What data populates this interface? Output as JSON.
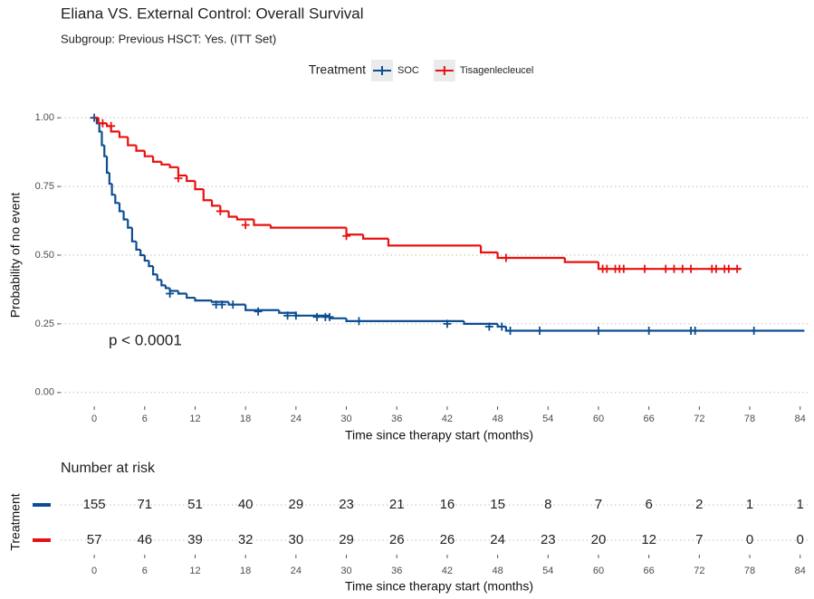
{
  "chart_data": [
    {
      "type": "km",
      "title": "Eliana VS. External Control: Overall Survival",
      "subtitle": "Subgroup: Previous HSCT: Yes. (ITT Set)",
      "legend_title": "Treatment",
      "legend_position": "top",
      "xlabel": "Time since therapy start (months)",
      "ylabel": "Probability of no event",
      "annotation": "p < 0.0001",
      "xlim": [
        -4,
        85
      ],
      "ylim": [
        -0.05,
        1.05
      ],
      "xticks": [
        0,
        6,
        12,
        18,
        24,
        30,
        36,
        42,
        48,
        54,
        60,
        66,
        72,
        78,
        84
      ],
      "yticks": [
        {
          "value": 0,
          "label": "0.00"
        },
        {
          "value": 0.25,
          "label": "0.25"
        },
        {
          "value": 0.5,
          "label": "0.50"
        },
        {
          "value": 0.75,
          "label": "0.75"
        },
        {
          "value": 1,
          "label": "1.00"
        }
      ],
      "grid": true,
      "series": [
        {
          "name": "SOC",
          "color": "#0c4e91",
          "x": [
            0,
            0.3,
            0.6,
            0.9,
            1.2,
            1.5,
            1.8,
            2.1,
            2.5,
            3,
            3.5,
            4,
            4.5,
            5,
            5.5,
            6,
            6.5,
            7,
            7.5,
            8,
            8.5,
            9,
            10,
            11,
            12,
            14,
            16,
            18,
            22,
            24,
            28,
            30,
            44,
            48,
            49,
            84.5
          ],
          "values": [
            1.0,
            0.98,
            0.95,
            0.9,
            0.86,
            0.8,
            0.76,
            0.72,
            0.69,
            0.66,
            0.63,
            0.6,
            0.55,
            0.52,
            0.5,
            0.48,
            0.46,
            0.43,
            0.41,
            0.39,
            0.38,
            0.37,
            0.36,
            0.345,
            0.335,
            0.33,
            0.32,
            0.3,
            0.29,
            0.28,
            0.27,
            0.26,
            0.25,
            0.24,
            0.225,
            0.225
          ],
          "censor_x": [
            0,
            9,
            14.5,
            15.2,
            16.5,
            19.5,
            23,
            24,
            26.5,
            27.5,
            28,
            31.5,
            42,
            47,
            48.5,
            49.5,
            53,
            60,
            66,
            71,
            71.5,
            78.5
          ],
          "censor_values": [
            1.0,
            0.36,
            0.32,
            0.32,
            0.32,
            0.295,
            0.28,
            0.28,
            0.275,
            0.275,
            0.275,
            0.26,
            0.25,
            0.24,
            0.24,
            0.225,
            0.225,
            0.225,
            0.225,
            0.225,
            0.225,
            0.225
          ]
        },
        {
          "name": "Tisagenlecleucel",
          "color": "#e8100f",
          "x": [
            0,
            0.5,
            1.5,
            2,
            3,
            4,
            5,
            6,
            7,
            8,
            9,
            10,
            11,
            12,
            13,
            14,
            15,
            16,
            17,
            19,
            21,
            30,
            32,
            35,
            46,
            48,
            56,
            60,
            77
          ],
          "values": [
            1.0,
            0.98,
            0.97,
            0.95,
            0.93,
            0.9,
            0.88,
            0.86,
            0.84,
            0.83,
            0.82,
            0.79,
            0.77,
            0.74,
            0.7,
            0.68,
            0.66,
            0.64,
            0.63,
            0.61,
            0.6,
            0.575,
            0.56,
            0.535,
            0.51,
            0.49,
            0.475,
            0.45,
            0.45
          ],
          "censor_x": [
            1,
            2,
            10,
            15,
            18,
            30,
            49,
            60.5,
            61,
            62,
            62.5,
            63,
            65.5,
            68,
            69,
            70,
            71,
            73.5,
            74,
            75,
            75.5,
            76.5
          ],
          "censor_values": [
            0.98,
            0.97,
            0.78,
            0.66,
            0.61,
            0.57,
            0.49,
            0.45,
            0.45,
            0.45,
            0.45,
            0.45,
            0.45,
            0.45,
            0.45,
            0.45,
            0.45,
            0.45,
            0.45,
            0.45,
            0.45,
            0.45
          ]
        }
      ]
    },
    {
      "type": "risk_table",
      "title": "Number at risk",
      "ylabel": "Treatment",
      "xlabel": "Time since therapy start (months)",
      "xlim": [
        -4,
        85
      ],
      "xticks": [
        0,
        6,
        12,
        18,
        24,
        30,
        36,
        42,
        48,
        54,
        60,
        66,
        72,
        78,
        84
      ],
      "series": [
        {
          "color": "#0c4e91",
          "values": [
            155,
            71,
            51,
            40,
            29,
            23,
            21,
            16,
            15,
            8,
            7,
            6,
            2,
            1,
            1
          ]
        },
        {
          "color": "#e8100f",
          "values": [
            57,
            46,
            39,
            32,
            30,
            29,
            26,
            26,
            24,
            23,
            20,
            12,
            7,
            0,
            0
          ]
        }
      ]
    }
  ]
}
